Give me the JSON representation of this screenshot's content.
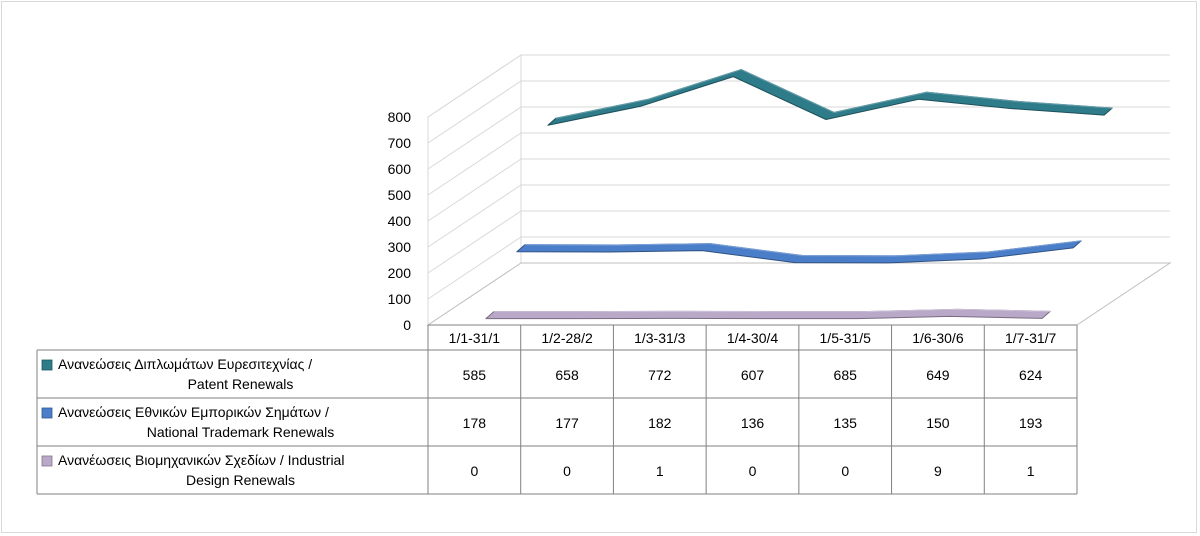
{
  "chart_data": {
    "type": "line",
    "title": "",
    "xlabel": "",
    "ylabel": "",
    "ylim": [
      0,
      800
    ],
    "yticks": [
      0,
      100,
      200,
      300,
      400,
      500,
      600,
      700,
      800
    ],
    "grid": true,
    "legend": "data-table",
    "three_d": true,
    "categories": [
      "1/1-31/1",
      "1/2-28/2",
      "1/3-31/3",
      "1/4-30/4",
      "1/5-31/5",
      "1/6-30/6",
      "1/7-31/7"
    ],
    "series": [
      {
        "name": "Ανανεώσεις Διπλωμάτων Ευρεσιτεχνίας  / Patent Renewals",
        "label_lines": [
          "Ανανεώσεις Διπλωμάτων Ευρεσιτεχνίας  /",
          "Patent Renewals"
        ],
        "values": [
          585,
          658,
          772,
          607,
          685,
          649,
          624
        ],
        "color": "#2e7b8a"
      },
      {
        "name": "Ανανεώσεις Εθνικών Εμπορικών Σημάτων / National Trademark Renewals",
        "label_lines": [
          "Ανανεώσεις Εθνικών Εμπορικών Σημάτων /",
          "National Trademark Renewals"
        ],
        "values": [
          178,
          177,
          182,
          136,
          135,
          150,
          193
        ],
        "color": "#4a7ec9"
      },
      {
        "name": "Ανανέωσεις Βιομηχανικών Σχεδίων / Industrial Design Renewals",
        "label_lines": [
          "Ανανέωσεις Βιομηχανικών Σχεδίων / Industrial",
          "Design Renewals"
        ],
        "values": [
          0,
          0,
          1,
          0,
          0,
          9,
          1
        ],
        "color": "#b9a8c8"
      }
    ]
  }
}
